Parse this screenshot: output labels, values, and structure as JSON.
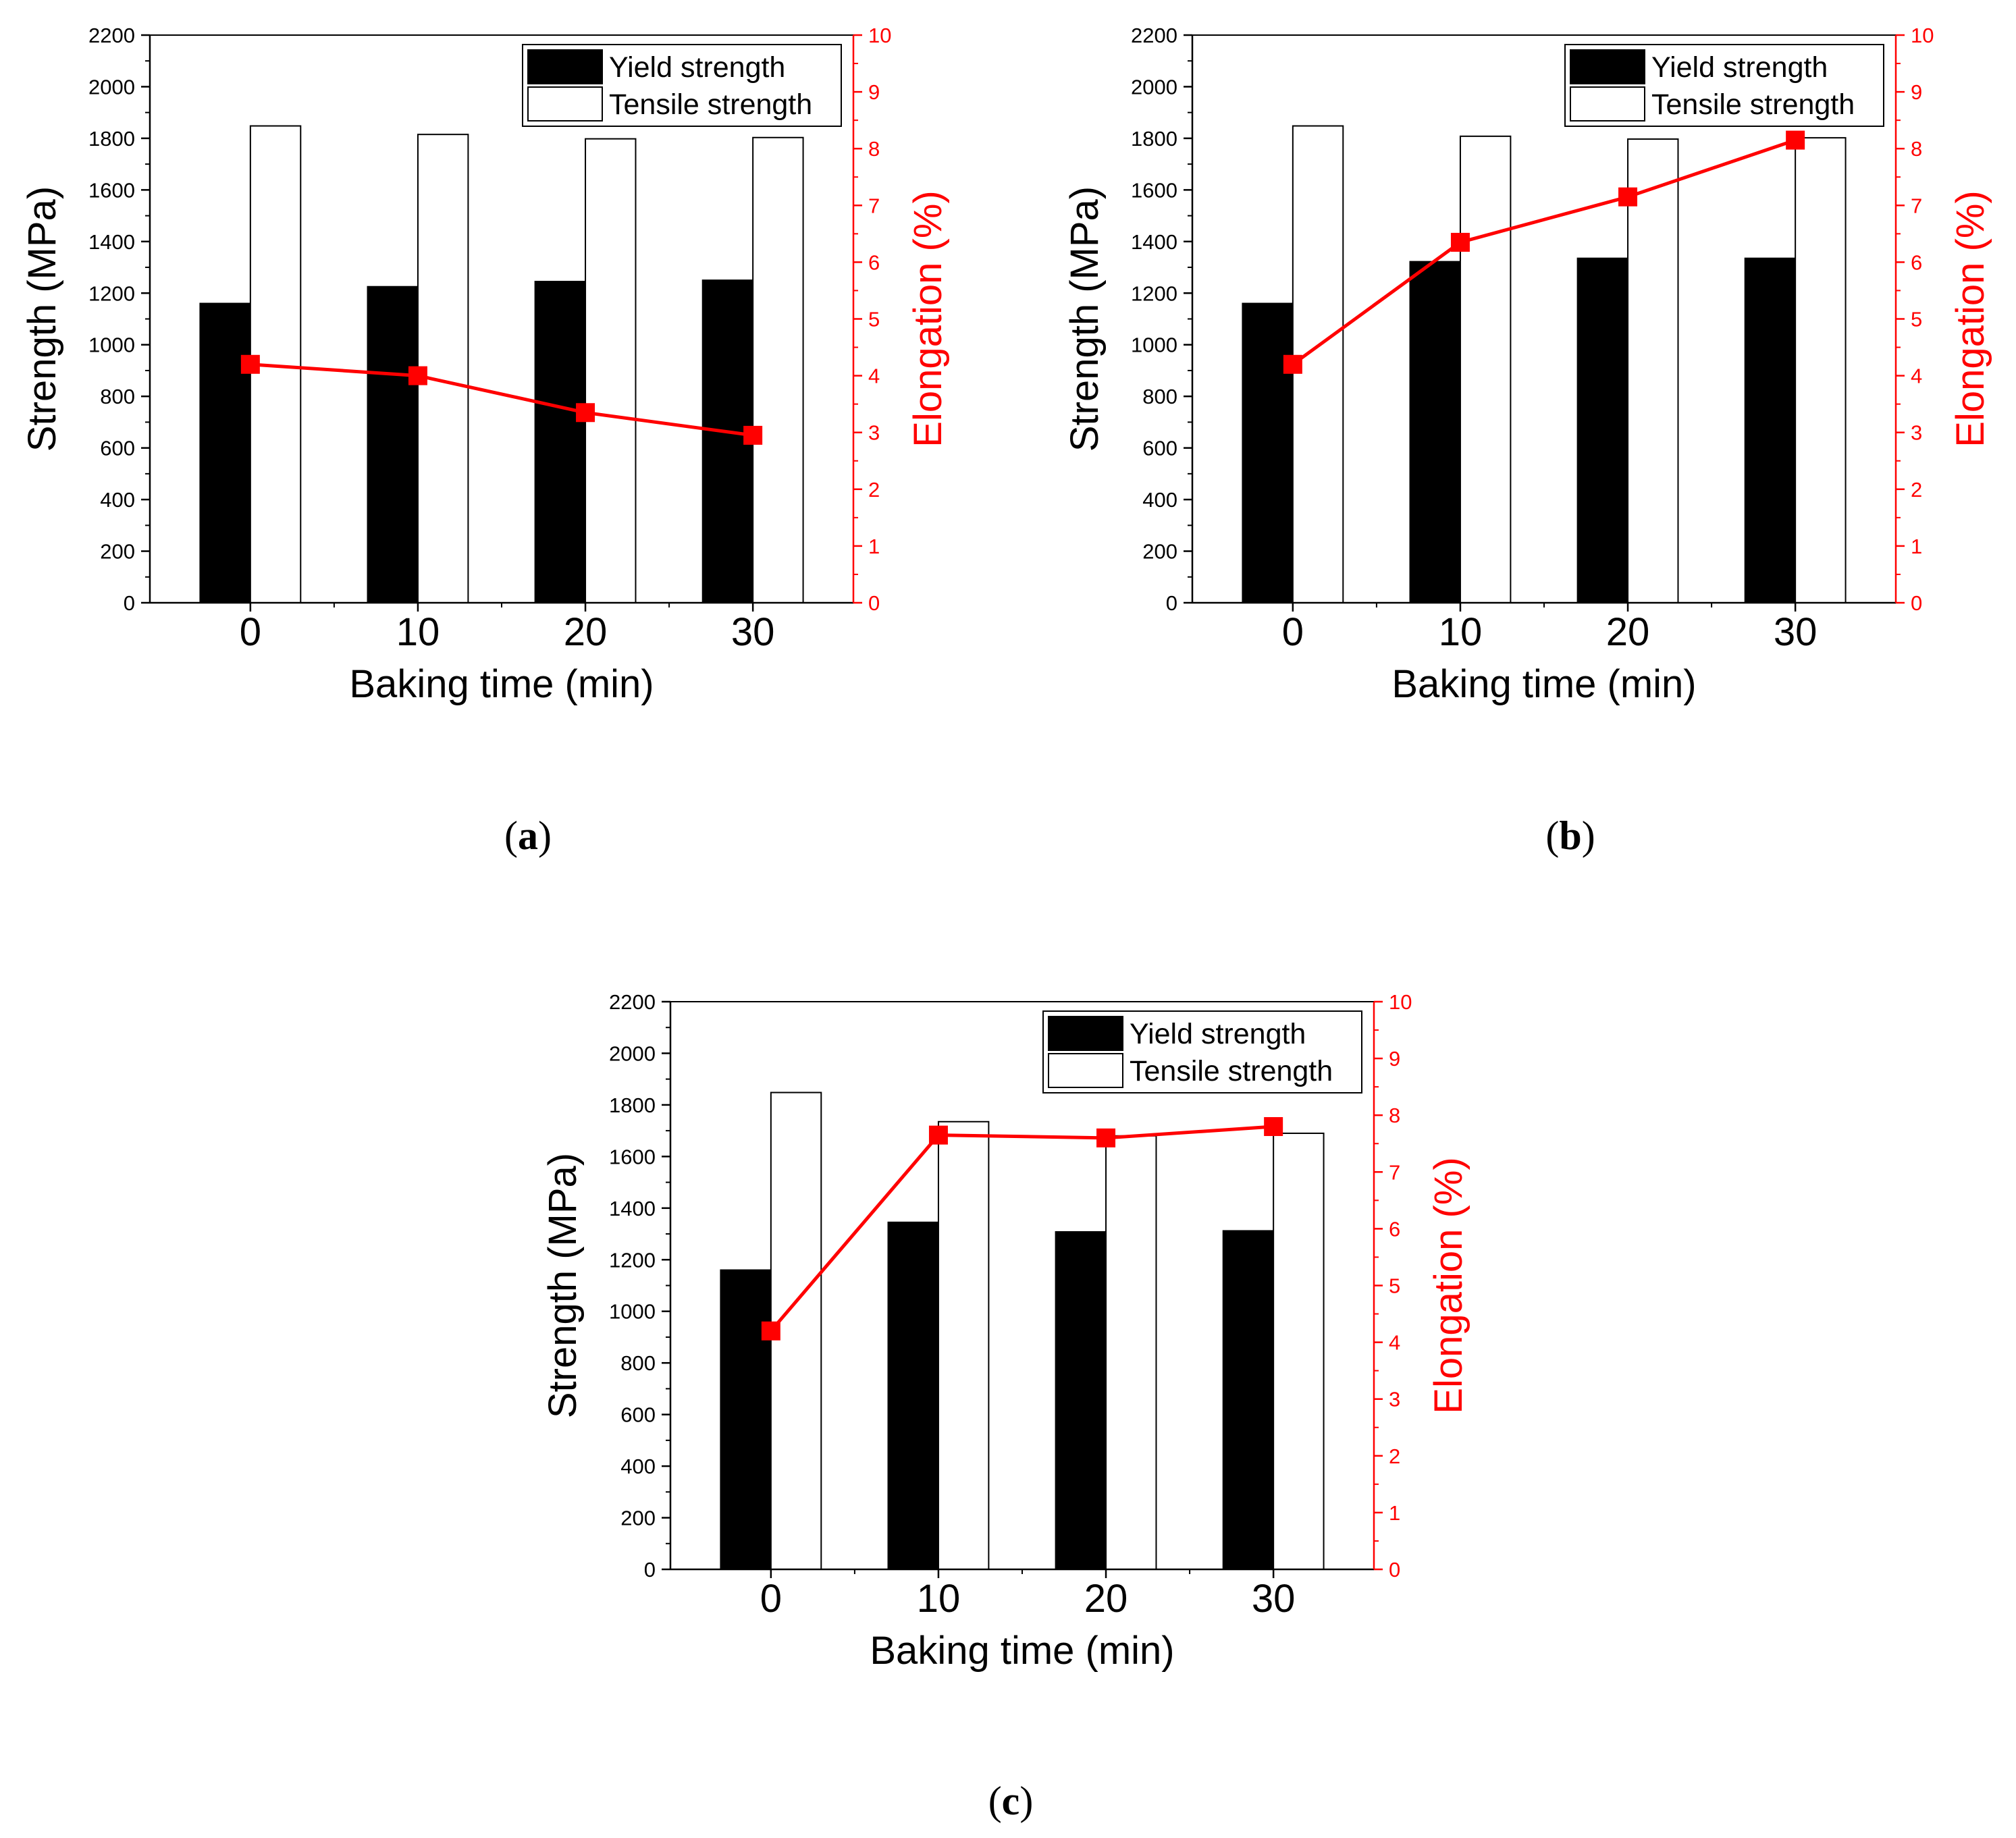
{
  "colors": {
    "left_axis": "#000000",
    "right_axis": "#ff0000",
    "yield_fill": "#000000",
    "tensile_fill": "#ffffff",
    "elongation_line": "#ff0000",
    "elongation_marker": "#ff0000"
  },
  "chart_data": [
    {
      "type": "bar",
      "panel": "a",
      "caption_letter": "a",
      "categories": [
        "0",
        "10",
        "20",
        "30"
      ],
      "xlabel": "Baking time (min)",
      "ylabel": "Strength (MPa)",
      "ylim": [
        0,
        2200
      ],
      "yticks": [
        "0",
        "200",
        "400",
        "600",
        "800",
        "1000",
        "1200",
        "1400",
        "1600",
        "1800",
        "2000",
        "2200"
      ],
      "y2label": "Elongation (%)",
      "y2lim": [
        0,
        10
      ],
      "y2ticks": [
        "0",
        "1",
        "2",
        "3",
        "4",
        "5",
        "6",
        "7",
        "8",
        "9",
        "10"
      ],
      "legend": {
        "position": "top-right",
        "entries": [
          "Yield strength",
          "Tensile strength"
        ]
      },
      "series": [
        {
          "name": "Yield strength",
          "kind": "bar",
          "values": [
            1160,
            1225,
            1245,
            1250
          ]
        },
        {
          "name": "Tensile strength",
          "kind": "bar",
          "values": [
            1848,
            1815,
            1798,
            1803
          ]
        },
        {
          "name": "Elongation",
          "kind": "line",
          "axis": "right",
          "values": [
            4.2,
            4.0,
            3.35,
            2.95
          ]
        }
      ]
    },
    {
      "type": "bar",
      "panel": "b",
      "caption_letter": "b",
      "categories": [
        "0",
        "10",
        "20",
        "30"
      ],
      "xlabel": "Baking time (min)",
      "ylabel": "Strength (MPa)",
      "ylim": [
        0,
        2200
      ],
      "yticks": [
        "0",
        "200",
        "400",
        "600",
        "800",
        "1000",
        "1200",
        "1400",
        "1600",
        "1800",
        "2000",
        "2200"
      ],
      "y2label": "Elongation (%)",
      "y2lim": [
        0,
        10
      ],
      "y2ticks": [
        "0",
        "1",
        "2",
        "3",
        "4",
        "5",
        "6",
        "7",
        "8",
        "9",
        "10"
      ],
      "legend": {
        "position": "top-right",
        "entries": [
          "Yield strength",
          "Tensile strength"
        ]
      },
      "series": [
        {
          "name": "Yield strength",
          "kind": "bar",
          "values": [
            1160,
            1322,
            1335,
            1335
          ]
        },
        {
          "name": "Tensile strength",
          "kind": "bar",
          "values": [
            1848,
            1808,
            1797,
            1802
          ]
        },
        {
          "name": "Elongation",
          "kind": "line",
          "axis": "right",
          "values": [
            4.2,
            6.35,
            7.15,
            8.15
          ]
        }
      ]
    },
    {
      "type": "bar",
      "panel": "c",
      "caption_letter": "c",
      "categories": [
        "0",
        "10",
        "20",
        "30"
      ],
      "xlabel": "Baking time (min)",
      "ylabel": "Strength (MPa)",
      "ylim": [
        0,
        2200
      ],
      "yticks": [
        "0",
        "200",
        "400",
        "600",
        "800",
        "1000",
        "1200",
        "1400",
        "1600",
        "1800",
        "2000",
        "2200"
      ],
      "y2label": "Elongation (%)",
      "y2lim": [
        0,
        10
      ],
      "y2ticks": [
        "0",
        "1",
        "2",
        "3",
        "4",
        "5",
        "6",
        "7",
        "8",
        "9",
        "10"
      ],
      "legend": {
        "position": "top-right",
        "entries": [
          "Yield strength",
          "Tensile strength"
        ]
      },
      "series": [
        {
          "name": "Yield strength",
          "kind": "bar",
          "values": [
            1160,
            1345,
            1308,
            1312
          ]
        },
        {
          "name": "Tensile strength",
          "kind": "bar",
          "values": [
            1848,
            1735,
            1680,
            1690
          ]
        },
        {
          "name": "Elongation",
          "kind": "line",
          "axis": "right",
          "values": [
            4.2,
            7.65,
            7.6,
            7.8
          ]
        }
      ]
    }
  ]
}
